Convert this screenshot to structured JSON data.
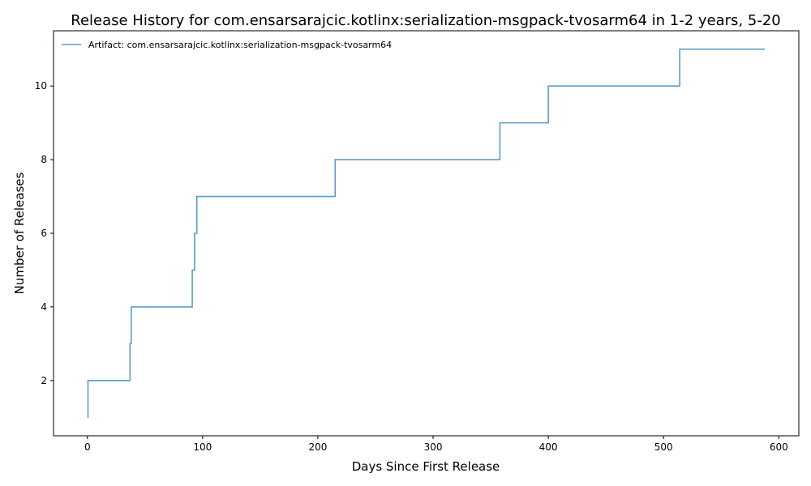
{
  "chart_data": {
    "type": "line",
    "drawstyle": "steps-post",
    "title": "Release History for com.ensarsarajcic.kotlinx:serialization-msgpack-tvosarm64 in 1-2 years, 5-20",
    "xlabel": "Days Since First Release",
    "ylabel": "Number of Releases",
    "xlim": [
      -29.4,
      617.4
    ],
    "ylim": [
      0.5,
      11.5
    ],
    "xticks": [
      0,
      100,
      200,
      300,
      400,
      500,
      600
    ],
    "yticks": [
      2,
      4,
      6,
      8,
      10
    ],
    "grid": false,
    "legend_position": "top-left",
    "series": [
      {
        "name": "Artifact: com.ensarsarajcic.kotlinx:serialization-msgpack-tvosarm64",
        "color": "#5b9ec9",
        "x": [
          0,
          0.5,
          37,
          38,
          91,
          93,
          95,
          215,
          358,
          400,
          514,
          588
        ],
        "y": [
          1,
          2,
          3,
          4,
          5,
          6,
          7,
          8,
          9,
          10,
          11,
          11
        ]
      }
    ]
  }
}
